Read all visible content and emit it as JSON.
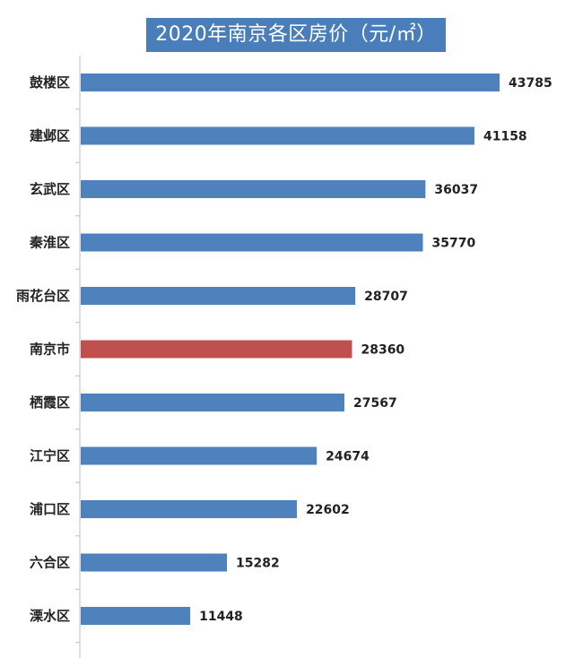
{
  "chart_data": {
    "type": "bar",
    "orientation": "horizontal",
    "title": "2020年南京各区房价（元/㎡）",
    "xlabel": "",
    "ylabel": "",
    "categories": [
      "鼓楼区",
      "建邺区",
      "玄武区",
      "秦淮区",
      "雨花台区",
      "南京市",
      "栖霞区",
      "江宁区",
      "浦口区",
      "六合区",
      "溧水区"
    ],
    "values": [
      43785,
      41158,
      36037,
      35770,
      28707,
      28360,
      27567,
      24674,
      22602,
      15282,
      11448
    ],
    "value_labels": [
      "43785",
      "41158",
      "36037",
      "35770",
      "28707",
      "28360",
      "27567",
      "24674",
      "22602",
      "15282",
      "11448"
    ],
    "highlight_category": "南京市",
    "colors": {
      "bar": "#4f81bd",
      "highlight": "#c0504d",
      "title_bg": "#4a7ebb",
      "title_text": "#ffffff",
      "axis": "#bfbfbf"
    },
    "grid": false,
    "legend": "none"
  }
}
